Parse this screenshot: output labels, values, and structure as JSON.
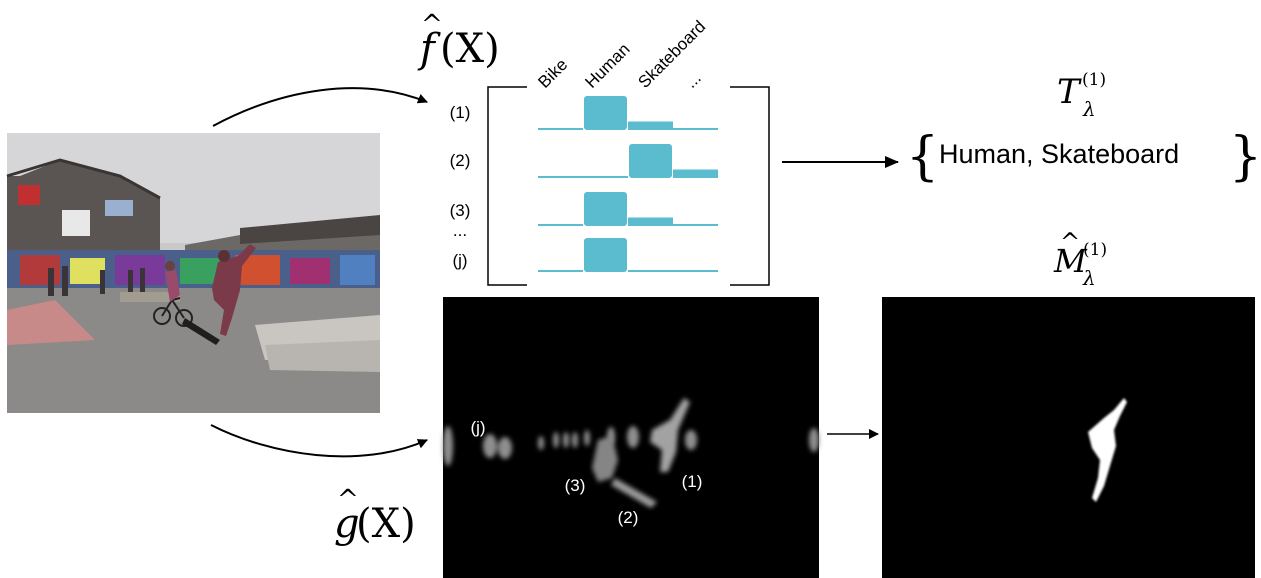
{
  "f_label": {
    "base": "f",
    "hat": "^",
    "arg": "(X)"
  },
  "g_label": {
    "base": "g",
    "hat": "^",
    "arg": "(X)"
  },
  "categories": [
    "Bike",
    "Human",
    "Skateboard",
    "..."
  ],
  "row_labels": [
    "(1)",
    "(2)",
    "(3)",
    "...",
    "(j)"
  ],
  "rows": [
    {
      "label": "(1)",
      "values": [
        0.05,
        1.0,
        0.25,
        0.05
      ]
    },
    {
      "label": "(2)",
      "values": [
        0.05,
        0.05,
        1.0,
        0.25
      ]
    },
    {
      "label": "(3)",
      "values": [
        0.05,
        1.0,
        0.25,
        0.05
      ]
    },
    {
      "label": "(j)",
      "values": [
        0.05,
        1.0,
        0.05,
        0.05
      ]
    }
  ],
  "bar_color": "#5bbcd0",
  "threshold": {
    "symbol": "T",
    "sub": "λ",
    "sup": "(1)"
  },
  "mask": {
    "symbol": "M",
    "hat": "^",
    "sub": "λ",
    "sup": "(1)"
  },
  "result_set": {
    "open": "{",
    "text": "Human, Skateboard",
    "close": "}"
  },
  "mask_labels": [
    "(j)",
    "(3)",
    "(2)",
    "(1)"
  ]
}
